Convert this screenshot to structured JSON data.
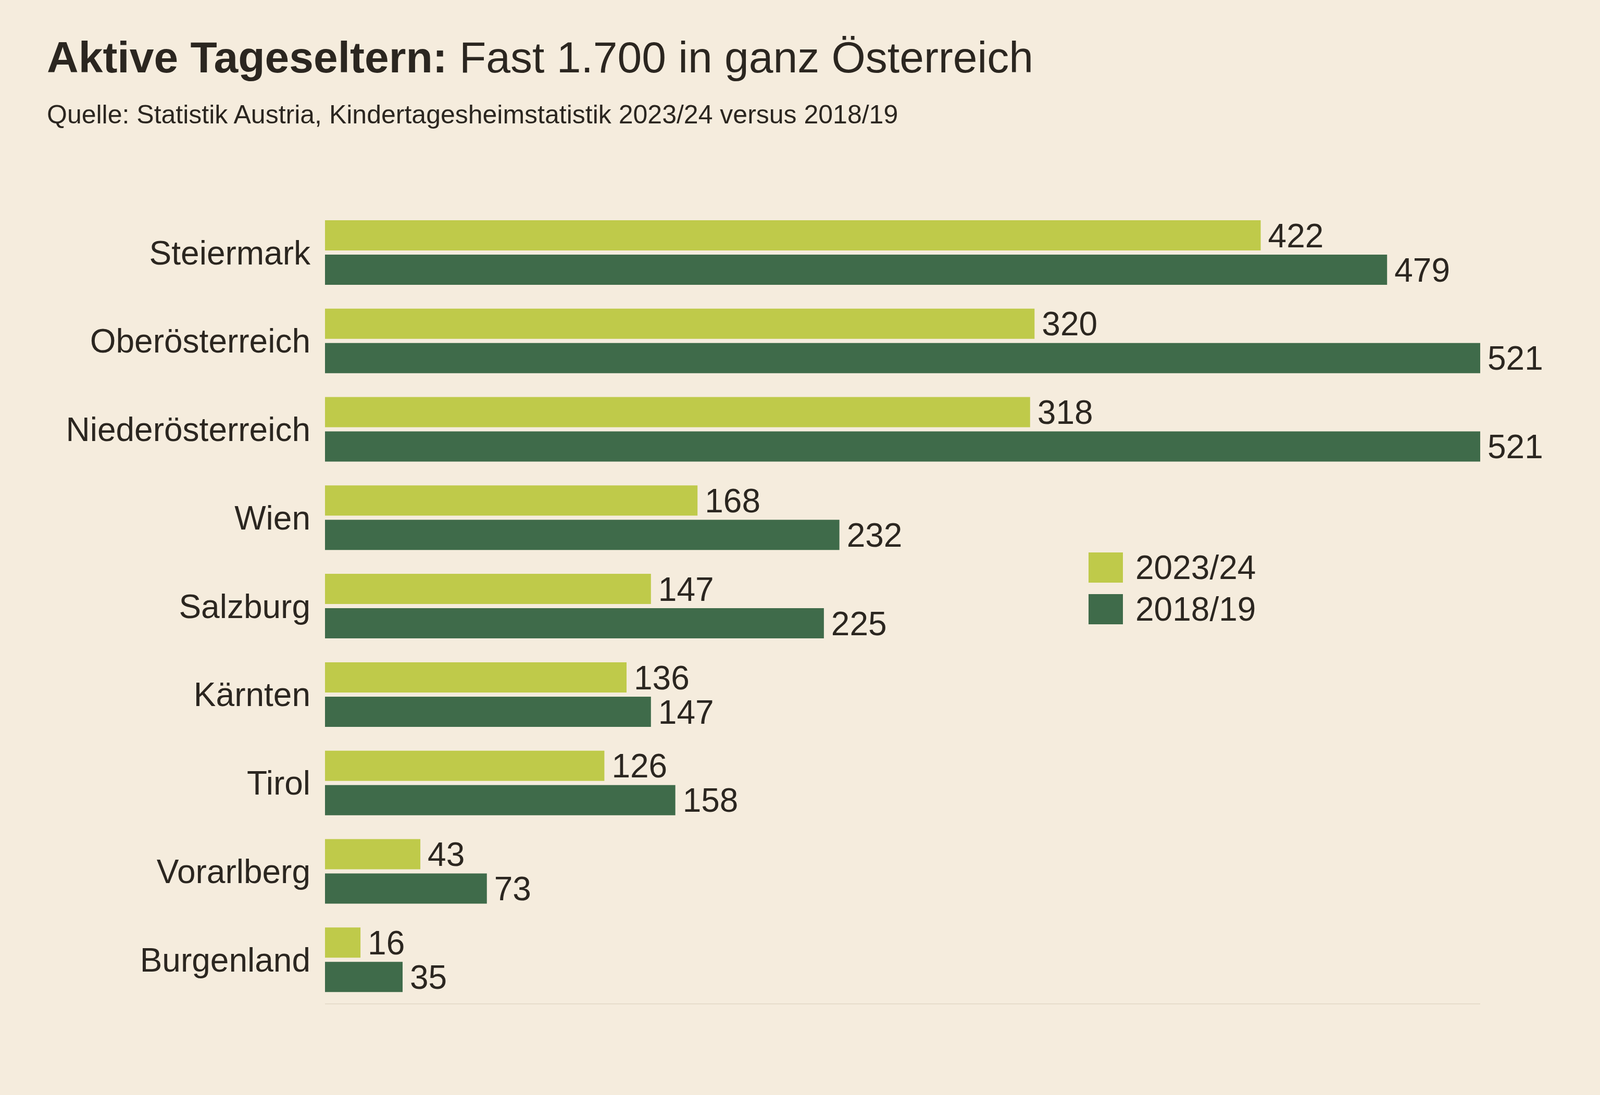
{
  "chart_data": {
    "type": "bar",
    "orientation": "horizontal",
    "title": "Aktive Tageseltern: Fast 1.700 in ganz Österreich",
    "subtitle": "Quelle: Statistik Austria, Kindertagesheimstatistik 2023/24 versus 2018/19",
    "categories": [
      "Steiermark",
      "Oberösterreich",
      "Niederösterreich",
      "Wien",
      "Salzburg",
      "Kärnten",
      "Tirol",
      "Vorarlberg",
      "Burgenland"
    ],
    "series": [
      {
        "name": "2023/24",
        "color": "#bfca4a",
        "values": [
          422,
          320,
          318,
          168,
          147,
          136,
          126,
          43,
          16
        ]
      },
      {
        "name": "2018/19",
        "color": "#3f6b4a",
        "values": [
          479,
          521,
          521,
          232,
          225,
          147,
          158,
          73,
          35
        ]
      }
    ],
    "xlim": [
      0,
      521
    ],
    "data_labels": true,
    "tick_labels": "y",
    "grid": false,
    "legend": "right"
  }
}
